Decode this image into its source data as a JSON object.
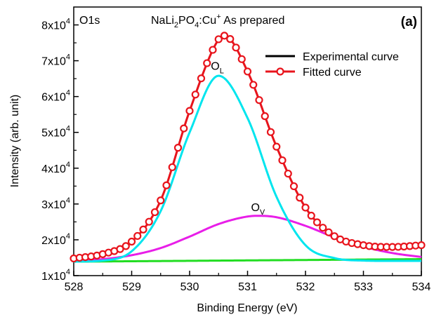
{
  "chart_data": {
    "type": "line",
    "panel_label": "(a)",
    "core_level": "O1s",
    "sample": {
      "base": "NaLi",
      "sub1": "2",
      "mid": "PO",
      "sub2": "4",
      "dopant": ":Cu",
      "sup": "+",
      "tail": " As prepared"
    },
    "xlabel": "Binding Energy (eV)",
    "ylabel": "Intensity (arb. unit)",
    "xlim": [
      528,
      534
    ],
    "ylim": [
      10000,
      85000
    ],
    "x_ticks": [
      528,
      529,
      530,
      531,
      532,
      533,
      534
    ],
    "y_ticks": [
      {
        "value": 10000,
        "mant": "1x10",
        "exp": "4"
      },
      {
        "value": 20000,
        "mant": "2x10",
        "exp": "4"
      },
      {
        "value": 30000,
        "mant": "3x10",
        "exp": "4"
      },
      {
        "value": 40000,
        "mant": "4x10",
        "exp": "4"
      },
      {
        "value": 50000,
        "mant": "5x10",
        "exp": "4"
      },
      {
        "value": 60000,
        "mant": "6x10",
        "exp": "4"
      },
      {
        "value": 70000,
        "mant": "7x10",
        "exp": "4"
      },
      {
        "value": 80000,
        "mant": "8x10",
        "exp": "4"
      }
    ],
    "grid": false,
    "legend_position": "top-right",
    "series": [
      {
        "name": "Experimental curve",
        "color": "#000000",
        "style": "line",
        "x": [
          528.0,
          528.5,
          529.0,
          529.5,
          530.0,
          530.5,
          530.6,
          531.0,
          531.5,
          532.0,
          532.5,
          533.0,
          533.5,
          534.0
        ],
        "y": [
          14800,
          16000,
          19500,
          31000,
          56000,
          76000,
          77000,
          67000,
          46000,
          29000,
          21000,
          18500,
          18000,
          18500
        ]
      },
      {
        "name": "Fitted curve",
        "color": "#e8141c",
        "style": "line-marker",
        "x": [
          528.0,
          528.5,
          529.0,
          529.5,
          530.0,
          530.5,
          530.6,
          531.0,
          531.5,
          532.0,
          532.5,
          533.0,
          533.5,
          534.0
        ],
        "y": [
          14800,
          16000,
          19500,
          31000,
          56000,
          76000,
          77000,
          67000,
          46000,
          29000,
          21000,
          18500,
          18000,
          18500
        ]
      },
      {
        "name": "",
        "color": "#00e5ee",
        "style": "line",
        "x": [
          528.0,
          528.5,
          529.0,
          529.5,
          530.0,
          530.5,
          531.0,
          531.5,
          532.0,
          532.5,
          533.0,
          533.5,
          534.0
        ],
        "y": [
          13900,
          14200,
          16800,
          28000,
          50000,
          65800,
          54000,
          32000,
          18500,
          14900,
          14200,
          14100,
          14100
        ]
      },
      {
        "name": "",
        "color": "#e81ee8",
        "style": "line",
        "x": [
          528.0,
          528.5,
          529.0,
          529.5,
          530.0,
          530.5,
          531.0,
          531.2,
          531.5,
          532.0,
          532.5,
          533.0,
          533.5,
          534.0
        ],
        "y": [
          14100,
          14600,
          15700,
          17700,
          20900,
          24400,
          26500,
          26700,
          26300,
          23900,
          20700,
          18100,
          16300,
          15200
        ]
      },
      {
        "name": "",
        "color": "#22dd22",
        "style": "line",
        "x": [
          528.0,
          534.0
        ],
        "y": [
          13900,
          14600
        ]
      }
    ],
    "annotations": [
      {
        "text": "O",
        "sub": "L",
        "x": 530.48,
        "y": 67500
      },
      {
        "text": "O",
        "sub": "V",
        "x": 531.18,
        "y": 28000
      }
    ]
  }
}
